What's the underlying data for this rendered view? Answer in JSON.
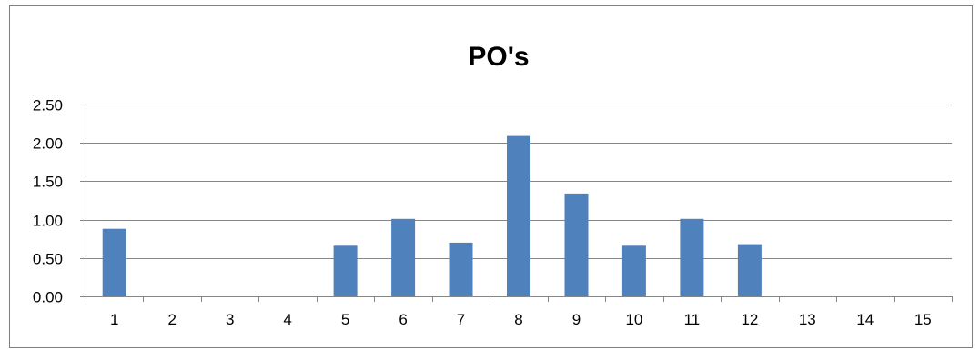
{
  "chart_data": {
    "type": "bar",
    "title": "PO's",
    "xlabel": "",
    "ylabel": "",
    "categories": [
      "1",
      "2",
      "3",
      "4",
      "5",
      "6",
      "7",
      "8",
      "9",
      "10",
      "11",
      "12",
      "13",
      "14",
      "15"
    ],
    "series": [
      {
        "values": [
          0.88,
          0,
          0,
          0,
          0.66,
          1.01,
          0.7,
          2.09,
          1.34,
          0.66,
          1.01,
          0.68,
          0,
          0,
          0
        ],
        "color": "#4f81bd"
      }
    ],
    "ylim": [
      0,
      2.5
    ],
    "yticks": [
      "0.00",
      "0.50",
      "1.00",
      "1.50",
      "2.00",
      "2.50"
    ],
    "grid": true,
    "legend": "none"
  }
}
